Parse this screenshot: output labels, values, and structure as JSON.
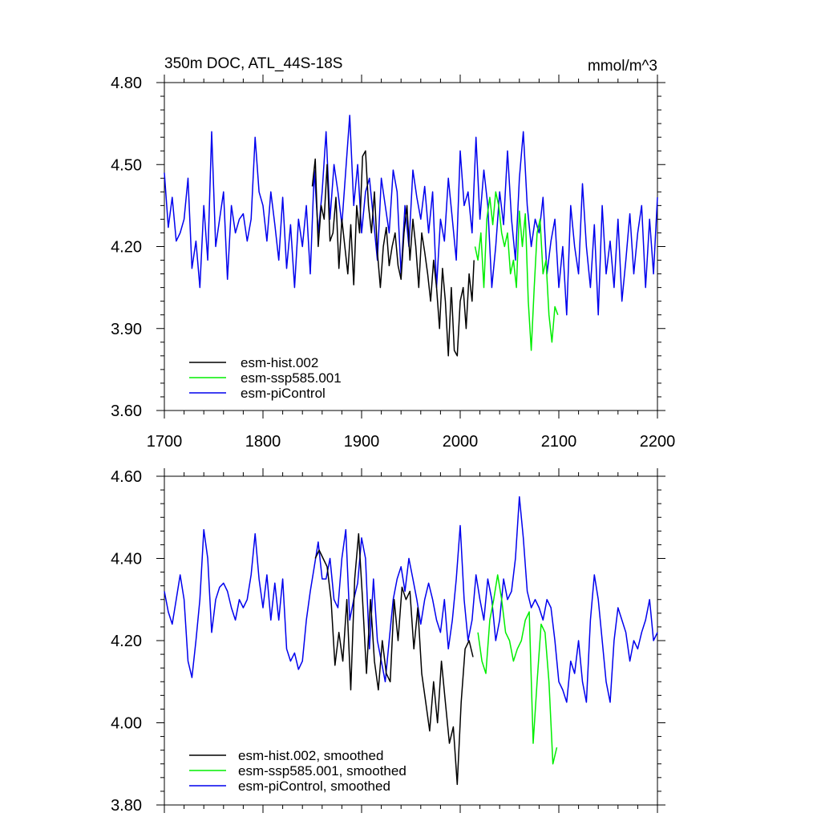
{
  "colors": {
    "hist": "#000000",
    "ssp": "#00ee00",
    "pi": "#0000ee",
    "axis": "#000000",
    "background": "#ffffff"
  },
  "chart_data": [
    {
      "type": "line",
      "title": "350m DOC, ATL_44S-18S",
      "units": "mmol/m^3",
      "xlabel": "",
      "ylabel": "",
      "xlim": [
        1700,
        2200
      ],
      "ylim": [
        3.6,
        4.8
      ],
      "x_ticks": [
        1700,
        1800,
        1900,
        2000,
        2100,
        2200
      ],
      "x_tick_labels": [
        "1700",
        "1800",
        "1900",
        "2000",
        "2100",
        "2200"
      ],
      "y_ticks": [
        3.6,
        3.9,
        4.2,
        4.5,
        4.8
      ],
      "y_tick_labels": [
        "3.60",
        "3.90",
        "4.20",
        "4.50",
        "4.80"
      ],
      "legend_position": "lower-left",
      "series": [
        {
          "name": "esm-hist.002",
          "color_key": "hist",
          "x": [
            1850,
            1853,
            1856,
            1859,
            1862,
            1865,
            1868,
            1871,
            1874,
            1877,
            1880,
            1883,
            1886,
            1889,
            1892,
            1895,
            1898,
            1901,
            1904,
            1907,
            1910,
            1913,
            1916,
            1919,
            1922,
            1925,
            1928,
            1931,
            1934,
            1937,
            1940,
            1943,
            1946,
            1949,
            1952,
            1955,
            1958,
            1961,
            1964,
            1967,
            1970,
            1973,
            1976,
            1979,
            1982,
            1985,
            1988,
            1991,
            1994,
            1997,
            2000,
            2003,
            2006,
            2009,
            2012,
            2014
          ],
          "values": [
            4.42,
            4.52,
            4.2,
            4.35,
            4.3,
            4.5,
            4.22,
            4.25,
            4.38,
            4.12,
            4.3,
            4.2,
            4.1,
            4.28,
            4.06,
            4.35,
            4.25,
            4.53,
            4.55,
            4.35,
            4.25,
            4.4,
            4.18,
            4.05,
            4.2,
            4.27,
            4.13,
            4.2,
            4.25,
            4.13,
            4.08,
            4.25,
            4.35,
            4.15,
            4.3,
            4.2,
            4.05,
            4.25,
            4.18,
            4.1,
            4.0,
            4.15,
            4.05,
            3.9,
            4.12,
            4.0,
            3.8,
            4.05,
            3.82,
            3.8,
            4.0,
            4.05,
            3.9,
            4.1,
            4.0,
            4.15
          ]
        },
        {
          "name": "esm-ssp585.001",
          "color_key": "ssp",
          "x": [
            2015,
            2018,
            2021,
            2024,
            2027,
            2030,
            2033,
            2036,
            2039,
            2042,
            2045,
            2048,
            2051,
            2054,
            2057,
            2060,
            2063,
            2066,
            2069,
            2072,
            2075,
            2078,
            2081,
            2084,
            2087,
            2090,
            2093,
            2096,
            2099
          ],
          "values": [
            4.2,
            4.15,
            4.25,
            4.05,
            4.3,
            4.38,
            4.28,
            4.4,
            4.35,
            4.25,
            4.2,
            4.25,
            4.1,
            4.15,
            4.05,
            4.33,
            4.2,
            4.32,
            4.0,
            3.82,
            4.05,
            4.25,
            4.3,
            4.1,
            4.15,
            3.95,
            3.85,
            3.98,
            3.95
          ]
        },
        {
          "name": "esm-piControl",
          "color_key": "pi",
          "x": [
            1700,
            1704,
            1708,
            1712,
            1716,
            1720,
            1724,
            1728,
            1732,
            1736,
            1740,
            1744,
            1748,
            1752,
            1756,
            1760,
            1764,
            1768,
            1772,
            1776,
            1780,
            1784,
            1788,
            1792,
            1796,
            1800,
            1804,
            1808,
            1812,
            1816,
            1820,
            1824,
            1828,
            1832,
            1836,
            1840,
            1844,
            1848,
            1852,
            1856,
            1860,
            1864,
            1868,
            1872,
            1876,
            1880,
            1884,
            1888,
            1892,
            1896,
            1900,
            1904,
            1908,
            1912,
            1916,
            1920,
            1924,
            1928,
            1932,
            1936,
            1940,
            1944,
            1948,
            1952,
            1956,
            1960,
            1964,
            1968,
            1972,
            1976,
            1980,
            1984,
            1988,
            1992,
            1996,
            2000,
            2004,
            2008,
            2012,
            2016,
            2020,
            2024,
            2028,
            2032,
            2036,
            2040,
            2044,
            2048,
            2052,
            2056,
            2060,
            2064,
            2068,
            2072,
            2076,
            2080,
            2084,
            2088,
            2092,
            2096,
            2100,
            2104,
            2108,
            2112,
            2116,
            2120,
            2124,
            2128,
            2132,
            2136,
            2140,
            2144,
            2148,
            2152,
            2156,
            2160,
            2164,
            2168,
            2172,
            2176,
            2180,
            2184,
            2188,
            2192,
            2196,
            2200
          ],
          "values": [
            4.47,
            4.27,
            4.38,
            4.22,
            4.25,
            4.3,
            4.45,
            4.12,
            4.22,
            4.05,
            4.35,
            4.15,
            4.62,
            4.2,
            4.3,
            4.4,
            4.08,
            4.35,
            4.25,
            4.3,
            4.32,
            4.22,
            4.3,
            4.6,
            4.4,
            4.35,
            4.22,
            4.4,
            4.28,
            4.15,
            4.38,
            4.12,
            4.28,
            4.05,
            4.3,
            4.2,
            4.35,
            4.1,
            4.48,
            4.25,
            4.4,
            4.62,
            4.3,
            4.5,
            4.4,
            4.28,
            4.48,
            4.68,
            4.35,
            4.5,
            4.25,
            4.4,
            4.45,
            4.3,
            4.15,
            4.45,
            4.35,
            4.25,
            4.48,
            4.4,
            4.1,
            4.35,
            4.2,
            4.48,
            4.38,
            4.3,
            4.42,
            4.25,
            4.4,
            4.05,
            4.3,
            4.22,
            4.45,
            4.3,
            4.15,
            4.55,
            4.35,
            4.4,
            4.25,
            4.6,
            4.3,
            4.48,
            4.35,
            4.05,
            4.2,
            4.4,
            4.28,
            4.55,
            4.3,
            4.15,
            4.45,
            4.62,
            4.35,
            4.2,
            4.3,
            4.25,
            4.38,
            4.1,
            4.22,
            4.3,
            4.05,
            4.2,
            3.95,
            4.35,
            4.2,
            4.1,
            4.43,
            4.2,
            4.05,
            4.28,
            3.95,
            4.35,
            4.1,
            4.22,
            4.05,
            4.3,
            4.0,
            4.15,
            4.32,
            4.1,
            4.25,
            4.35,
            4.05,
            4.3,
            4.1,
            4.38
          ]
        }
      ]
    },
    {
      "type": "line",
      "title": "",
      "xlabel": "",
      "ylabel": "",
      "xlim": [
        1700,
        2200
      ],
      "ylim": [
        3.8,
        4.6
      ],
      "x_ticks": [
        1700,
        1800,
        1900,
        2000,
        2100,
        2200
      ],
      "y_ticks": [
        3.8,
        4.0,
        4.2,
        4.4,
        4.6
      ],
      "y_tick_labels": [
        "3.80",
        "4.00",
        "4.20",
        "4.40",
        "4.60"
      ],
      "legend_position": "lower-left",
      "series": [
        {
          "name": "esm-hist.002, smoothed",
          "color_key": "hist",
          "x": [
            1853,
            1857,
            1861,
            1865,
            1869,
            1873,
            1877,
            1881,
            1885,
            1889,
            1893,
            1897,
            1901,
            1905,
            1909,
            1913,
            1917,
            1921,
            1925,
            1929,
            1933,
            1937,
            1941,
            1945,
            1949,
            1953,
            1957,
            1961,
            1965,
            1969,
            1973,
            1977,
            1981,
            1985,
            1989,
            1993,
            1997,
            2001,
            2005,
            2009,
            2013
          ],
          "values": [
            4.4,
            4.42,
            4.4,
            4.38,
            4.3,
            4.14,
            4.22,
            4.15,
            4.3,
            4.08,
            4.35,
            4.46,
            4.3,
            4.12,
            4.3,
            4.15,
            4.08,
            4.2,
            4.12,
            4.1,
            4.3,
            4.2,
            4.33,
            4.3,
            4.32,
            4.18,
            4.28,
            4.12,
            4.05,
            3.98,
            4.1,
            4.0,
            4.15,
            4.05,
            3.95,
            3.99,
            3.85,
            4.05,
            4.18,
            4.2,
            4.16
          ]
        },
        {
          "name": "esm-ssp585.001, smoothed",
          "color_key": "ssp",
          "x": [
            2018,
            2022,
            2026,
            2030,
            2034,
            2038,
            2042,
            2046,
            2050,
            2054,
            2058,
            2062,
            2066,
            2070,
            2074,
            2078,
            2082,
            2086,
            2090,
            2094,
            2098
          ],
          "values": [
            4.22,
            4.15,
            4.12,
            4.25,
            4.3,
            4.36,
            4.3,
            4.22,
            4.2,
            4.15,
            4.18,
            4.2,
            4.25,
            4.27,
            3.95,
            4.1,
            4.24,
            4.22,
            4.1,
            3.9,
            3.94
          ]
        },
        {
          "name": "esm-piControl, smoothed",
          "color_key": "pi",
          "x": [
            1700,
            1704,
            1708,
            1712,
            1716,
            1720,
            1724,
            1728,
            1732,
            1736,
            1740,
            1744,
            1748,
            1752,
            1756,
            1760,
            1764,
            1768,
            1772,
            1776,
            1780,
            1784,
            1788,
            1792,
            1796,
            1800,
            1804,
            1808,
            1812,
            1816,
            1820,
            1824,
            1828,
            1832,
            1836,
            1840,
            1844,
            1848,
            1852,
            1856,
            1860,
            1864,
            1868,
            1872,
            1876,
            1880,
            1884,
            1888,
            1892,
            1896,
            1900,
            1904,
            1908,
            1912,
            1916,
            1920,
            1924,
            1928,
            1932,
            1936,
            1940,
            1944,
            1948,
            1952,
            1956,
            1960,
            1964,
            1968,
            1972,
            1976,
            1980,
            1984,
            1988,
            1992,
            1996,
            2000,
            2004,
            2008,
            2012,
            2016,
            2020,
            2024,
            2028,
            2032,
            2036,
            2040,
            2044,
            2048,
            2052,
            2056,
            2060,
            2064,
            2068,
            2072,
            2076,
            2080,
            2084,
            2088,
            2092,
            2096,
            2100,
            2104,
            2108,
            2112,
            2116,
            2120,
            2124,
            2128,
            2132,
            2136,
            2140,
            2144,
            2148,
            2152,
            2156,
            2160,
            2164,
            2168,
            2172,
            2176,
            2180,
            2184,
            2188,
            2192,
            2196,
            2200
          ],
          "values": [
            4.32,
            4.27,
            4.24,
            4.3,
            4.36,
            4.3,
            4.15,
            4.11,
            4.2,
            4.3,
            4.47,
            4.4,
            4.22,
            4.3,
            4.33,
            4.34,
            4.32,
            4.28,
            4.25,
            4.3,
            4.28,
            4.3,
            4.36,
            4.46,
            4.35,
            4.28,
            4.36,
            4.25,
            4.34,
            4.25,
            4.35,
            4.18,
            4.15,
            4.17,
            4.13,
            4.15,
            4.25,
            4.32,
            4.38,
            4.44,
            4.35,
            4.35,
            4.4,
            4.3,
            4.28,
            4.4,
            4.47,
            4.25,
            4.3,
            4.34,
            4.45,
            4.4,
            4.18,
            4.35,
            4.2,
            4.15,
            4.1,
            4.2,
            4.3,
            4.35,
            4.38,
            4.32,
            4.4,
            4.35,
            4.3,
            4.24,
            4.3,
            4.34,
            4.3,
            4.25,
            4.22,
            4.3,
            4.18,
            4.25,
            4.35,
            4.48,
            4.3,
            4.2,
            4.25,
            4.36,
            4.3,
            4.25,
            4.35,
            4.3,
            4.2,
            4.25,
            4.35,
            4.3,
            4.32,
            4.4,
            4.55,
            4.45,
            4.32,
            4.28,
            4.3,
            4.28,
            4.25,
            4.3,
            4.28,
            4.2,
            4.1,
            4.08,
            4.05,
            4.15,
            4.12,
            4.2,
            4.1,
            4.05,
            4.25,
            4.36,
            4.3,
            4.2,
            4.1,
            4.05,
            4.2,
            4.28,
            4.25,
            4.22,
            4.15,
            4.2,
            4.18,
            4.22,
            4.25,
            4.3,
            4.2,
            4.22
          ]
        }
      ]
    }
  ]
}
